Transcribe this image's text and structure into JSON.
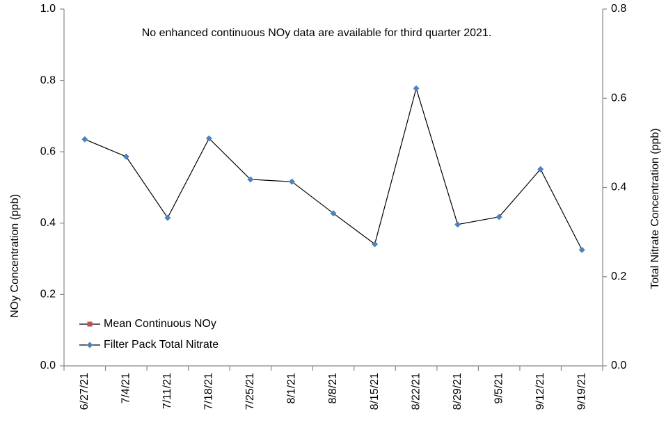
{
  "chart_data": {
    "type": "line",
    "annotation": "No enhanced continuous NOy data are available for third quarter 2021.",
    "ylabel": "NOy Concentration (ppb)",
    "y2label": "Total Nitrate Concentration (ppb)",
    "categories": [
      "6/27/21",
      "7/4/21",
      "7/11/21",
      "7/18/21",
      "7/25/21",
      "8/1/21",
      "8/8/21",
      "8/15/21",
      "8/22/21",
      "8/29/21",
      "9/5/21",
      "9/12/21",
      "9/19/21"
    ],
    "series": [
      {
        "name": "Mean Continuous NOy",
        "color": "#c0504d",
        "marker": "square",
        "values": [
          null,
          null,
          null,
          null,
          null,
          null,
          null,
          null,
          null,
          null,
          null,
          null,
          null
        ]
      },
      {
        "name": "Filter Pack Total Nitrate",
        "color": "#4f81bd",
        "marker": "diamond",
        "axis": "y2",
        "values": [
          0.508,
          0.469,
          0.332,
          0.51,
          0.418,
          0.413,
          0.342,
          0.273,
          0.622,
          0.317,
          0.334,
          0.441,
          0.26
        ]
      }
    ],
    "ylim": [
      0,
      1
    ],
    "yticks": [
      {
        "value": 0,
        "label": "0.0"
      },
      0.2,
      0.4,
      0.6,
      0.8,
      {
        "value": 1,
        "label": "1.0"
      }
    ],
    "y2lim": [
      0,
      0.8
    ],
    "y2ticks": [
      {
        "value": 0,
        "label": "0.0"
      },
      0.2,
      0.4,
      0.6,
      0.8
    ],
    "legend": "lower left",
    "grid": false
  }
}
